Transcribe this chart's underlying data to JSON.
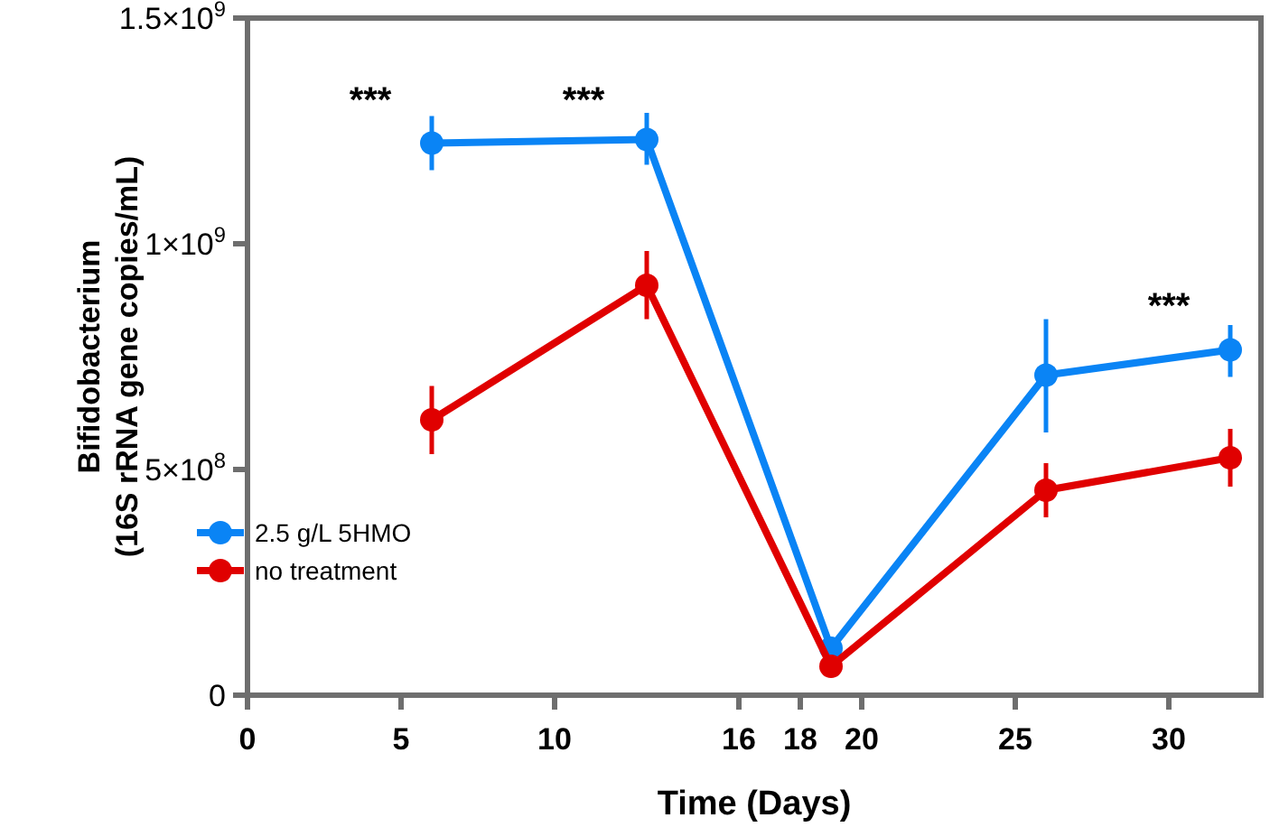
{
  "chart_data": {
    "type": "line",
    "xlabel": "Time (Days)",
    "ylabel": "Bifidobacterium\n(16S rRNA gene copies/mL)",
    "xlim": [
      0,
      33
    ],
    "xticks": [
      0,
      5,
      10,
      16,
      18,
      20,
      25,
      30
    ],
    "ylim": [
      0,
      1500000000
    ],
    "yticks": [
      {
        "value": 0,
        "label": "0"
      },
      {
        "value": 500000000,
        "label": "5×10$^{8}$"
      },
      {
        "value": 1000000000,
        "label": "1×10$^{9}$"
      },
      {
        "value": 1500000000,
        "label": "1.5×10$^{9}$"
      }
    ],
    "x": [
      6,
      13,
      19,
      26,
      32
    ],
    "series": [
      {
        "name": "2.5 g/L 5HMO",
        "color": "#0a84f5",
        "values": [
          1223000000,
          1231000000,
          104000000,
          709000000,
          765000000
        ],
        "errors": [
          [
            1163000000,
            1283000000
          ],
          [
            1175000000,
            1290000000
          ],
          null,
          [
            582000000,
            833000000
          ],
          [
            705000000,
            820000000
          ]
        ]
      },
      {
        "name": "no treatment",
        "color": "#e00000",
        "values": [
          610000000,
          908000000,
          64000000,
          454000000,
          526000000
        ],
        "errors": [
          [
            534000000,
            685000000
          ],
          [
            833000000,
            984000000
          ],
          null,
          [
            394000000,
            514000000
          ],
          [
            462000000,
            590000000
          ]
        ]
      }
    ],
    "annotations": [
      "***",
      "***",
      "***"
    ],
    "legend": "bottom left",
    "marker": "circle",
    "line_style": "solid",
    "grid": false
  }
}
